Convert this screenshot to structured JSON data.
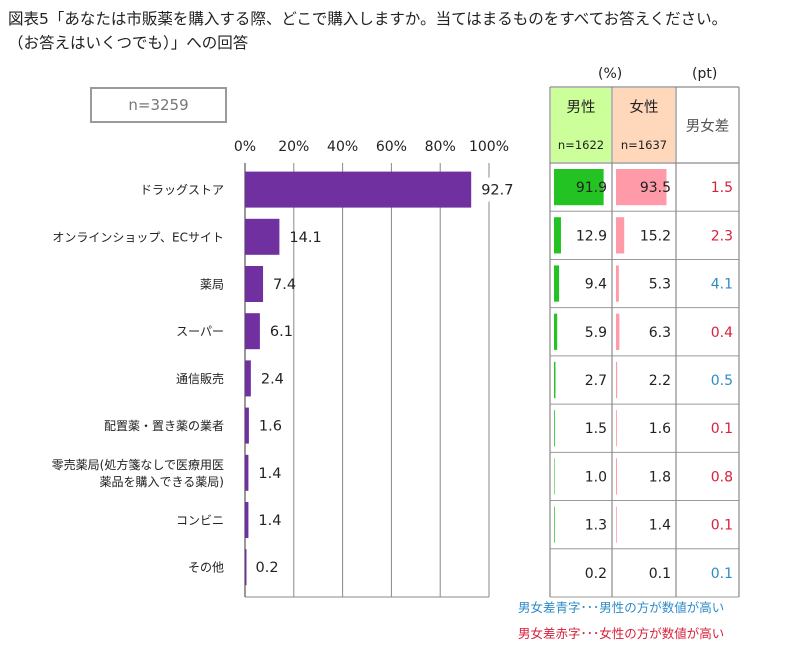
{
  "title": {
    "line1": "図表5「あなたは市販薬を購入する際、どこで購入しますか。当てはまるものをすべてお答えください。",
    "line2": "（お答えはいくつでも）」への回答"
  },
  "sample_label": "n=3259",
  "units": {
    "pct": "(%)",
    "pt": "(pt)"
  },
  "table_header": {
    "male": "男性",
    "male_n": "n=1622",
    "female": "女性",
    "female_n": "n=1637",
    "diff": "男女差"
  },
  "notes": {
    "blue": "男女差青字･･･男性の方が数値が高い",
    "red": "男女差赤字･･･女性の方が数値が高い"
  },
  "colors": {
    "bar": "#7030a0",
    "male_bar": "#22c322",
    "female_bar": "#ff9aa8",
    "male_header": "#ccff99",
    "female_header": "#ffd7bb",
    "diff_blue": "#2e8bc9",
    "diff_red": "#d8203a",
    "grid": "#888888"
  },
  "chart_data": {
    "type": "bar",
    "orientation": "horizontal",
    "categories": [
      "ドラッグストア",
      "オンラインショップ、ECサイト",
      "薬局",
      "スーパー",
      "通信販売",
      "配置薬・置き薬の業者",
      "零売薬局(処方箋なしで医療用医薬品を購入できる薬局)",
      "コンビニ",
      "その他"
    ],
    "category_lines": [
      [
        "ドラッグストア"
      ],
      [
        "オンラインショップ、ECサイト"
      ],
      [
        "薬局"
      ],
      [
        "スーパー"
      ],
      [
        "通信販売"
      ],
      [
        "配置薬・置き薬の業者"
      ],
      [
        "零売薬局(処方箋なしで医療用医",
        "薬品を購入できる薬局)"
      ],
      [
        "コンビニ"
      ],
      [
        "その他"
      ]
    ],
    "values": [
      92.7,
      14.1,
      7.4,
      6.1,
      2.4,
      1.6,
      1.4,
      1.4,
      0.2
    ],
    "labels": [
      "92.7",
      "14.1",
      "7.4",
      "6.1",
      "2.4",
      "1.6",
      "1.4",
      "1.4",
      "0.2"
    ],
    "xlim": [
      0,
      100
    ],
    "xticks": [
      "0%",
      "20%",
      "40%",
      "60%",
      "80%",
      "100%"
    ],
    "grid": true,
    "table": {
      "male": [
        91.9,
        12.9,
        9.4,
        5.9,
        2.7,
        1.5,
        1.0,
        1.3,
        0.2
      ],
      "male_labels": [
        "91.9",
        "12.9",
        "9.4",
        "5.9",
        "2.7",
        "1.5",
        "1.0",
        "1.3",
        "0.2"
      ],
      "female": [
        93.5,
        15.2,
        5.3,
        6.3,
        2.2,
        1.6,
        1.8,
        1.4,
        0.1
      ],
      "female_labels": [
        "93.5",
        "15.2",
        "5.3",
        "6.3",
        "2.2",
        "1.6",
        "1.8",
        "1.4",
        "0.1"
      ],
      "diff": [
        "1.5",
        "2.3",
        "4.1",
        "0.4",
        "0.5",
        "0.1",
        "0.8",
        "0.1",
        "0.1"
      ],
      "diff_color": [
        "red",
        "red",
        "blue",
        "red",
        "blue",
        "red",
        "red",
        "red",
        "blue"
      ]
    }
  }
}
